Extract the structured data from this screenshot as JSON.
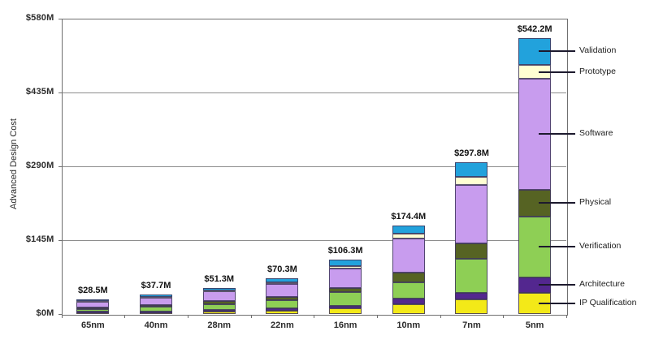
{
  "chart_data": {
    "type": "bar",
    "stacked": true,
    "title": "",
    "ylabel": "Advanced Design Cost",
    "xlabel": "",
    "ylim": [
      0,
      580
    ],
    "grid": true,
    "legend_position": "right-of-last-bar",
    "y_tick_values": [
      0,
      145,
      290,
      435,
      580
    ],
    "y_tick_labels": [
      "$0M",
      "$145M",
      "$290M",
      "$435M",
      "$580M"
    ],
    "categories": [
      "65nm",
      "40nm",
      "28nm",
      "22nm",
      "16nm",
      "10nm",
      "7nm",
      "5nm"
    ],
    "totals": [
      28.5,
      37.7,
      51.3,
      70.3,
      106.3,
      174.4,
      297.8,
      542.2
    ],
    "total_labels": [
      "$28.5M",
      "$37.7M",
      "$51.3M",
      "$70.3M",
      "$106.3M",
      "$174.4M",
      "$297.8M",
      "$542.2M"
    ],
    "series": [
      {
        "name": "IP Qualification",
        "color": "#f3e918",
        "values": [
          2.7,
          3.6,
          4.1,
          6.7,
          11.2,
          19.4,
          27.9,
          41.7
        ]
      },
      {
        "name": "Architecture",
        "color": "#53278f",
        "values": [
          1.5,
          1.9,
          3.7,
          4.3,
          5.3,
          10.8,
          14.3,
          30.4
        ]
      },
      {
        "name": "Verification",
        "color": "#8ecf55",
        "values": [
          6.1,
          8.1,
          11.0,
          15.9,
          26.9,
          32.7,
          65.6,
          119.2
        ]
      },
      {
        "name": "Physical",
        "color": "#566323",
        "values": [
          2.5,
          3.3,
          6.1,
          7.2,
          7.8,
          19.1,
          30.3,
          53.0
        ]
      },
      {
        "name": "Software",
        "color": "#c89cee",
        "values": [
          11.2,
          14.8,
          19.3,
          25.2,
          38.2,
          66.4,
          114.6,
          217.3
        ]
      },
      {
        "name": "Prototype",
        "color": "#ffffd2",
        "values": [
          1.3,
          1.7,
          1.4,
          2.4,
          5.3,
          9.9,
          16.6,
          27.6
        ]
      },
      {
        "name": "Validation",
        "color": "#22a2dc",
        "values": [
          3.2,
          4.3,
          5.7,
          8.6,
          11.6,
          16.1,
          28.5,
          53.0
        ]
      }
    ],
    "legend_entries": [
      "Validation",
      "Prototype",
      "Software",
      "Physical",
      "Verification",
      "Architecture",
      "IP Qualification"
    ]
  },
  "colors": {
    "background": "#ffffff",
    "frame": "#6f6f6f",
    "gridline": "#8d8d8d",
    "bar_border": "#3e365c",
    "leader_line": "#1d1a2e",
    "text": "#2b2b2b",
    "total_text": "#111111"
  }
}
